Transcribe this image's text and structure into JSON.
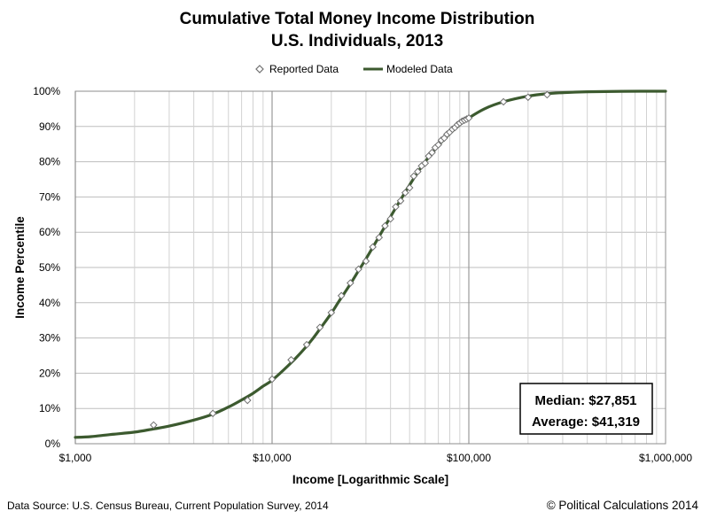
{
  "chart_data": {
    "type": "scatter",
    "title": "Cumulative Total Money Income Distribution",
    "subtitle": "U.S. Individuals, 2013",
    "xlabel": "Income [Logarithmic Scale]",
    "ylabel": "Income Percentile",
    "x_scale": "log",
    "xlim": [
      1000,
      1000000
    ],
    "ylim": [
      0,
      100
    ],
    "x_tick_values": [
      1000,
      10000,
      100000,
      1000000
    ],
    "x_tick_labels": [
      "$1,000",
      "$10,000",
      "$100,000",
      "$1,000,000"
    ],
    "y_tick_values": [
      0,
      10,
      20,
      30,
      40,
      50,
      60,
      70,
      80,
      90,
      100
    ],
    "y_tick_labels": [
      "0%",
      "10%",
      "20%",
      "30%",
      "40%",
      "50%",
      "60%",
      "70%",
      "80%",
      "90%",
      "100%"
    ],
    "grid": true,
    "legend_position": "top",
    "series": [
      {
        "name": "Reported Data",
        "style": "diamond-markers",
        "color": "#707070",
        "points": [
          [
            2500,
            5.3
          ],
          [
            5000,
            8.6
          ],
          [
            7500,
            12.3
          ],
          [
            10000,
            18.3
          ],
          [
            12500,
            23.8
          ],
          [
            15000,
            28.1
          ],
          [
            17500,
            33.0
          ],
          [
            20000,
            37.2
          ],
          [
            22500,
            42.0
          ],
          [
            25000,
            45.6
          ],
          [
            27500,
            49.5
          ],
          [
            30000,
            51.8
          ],
          [
            32500,
            55.8
          ],
          [
            35000,
            58.5
          ],
          [
            37500,
            61.8
          ],
          [
            40000,
            63.8
          ],
          [
            42500,
            67.2
          ],
          [
            45000,
            68.9
          ],
          [
            47500,
            71.2
          ],
          [
            50000,
            72.6
          ],
          [
            52500,
            75.9
          ],
          [
            55000,
            77.2
          ],
          [
            57500,
            78.8
          ],
          [
            60000,
            79.6
          ],
          [
            62500,
            81.6
          ],
          [
            65000,
            82.6
          ],
          [
            67500,
            84.0
          ],
          [
            70000,
            84.8
          ],
          [
            72500,
            86.1
          ],
          [
            75000,
            86.7
          ],
          [
            77500,
            87.8
          ],
          [
            80000,
            88.4
          ],
          [
            82500,
            89.2
          ],
          [
            85000,
            89.7
          ],
          [
            87500,
            90.5
          ],
          [
            90000,
            91.0
          ],
          [
            92500,
            91.5
          ],
          [
            95000,
            91.8
          ],
          [
            97500,
            92.1
          ],
          [
            100000,
            92.4
          ],
          [
            150000,
            97.0
          ],
          [
            200000,
            98.3
          ],
          [
            250000,
            99.0
          ]
        ]
      },
      {
        "name": "Modeled Data",
        "style": "line",
        "color": "#3c5a2f",
        "points": [
          [
            1000,
            1.8
          ],
          [
            1200,
            2.0
          ],
          [
            1500,
            2.6
          ],
          [
            2000,
            3.3
          ],
          [
            2500,
            4.2
          ],
          [
            3000,
            5.0
          ],
          [
            4000,
            6.7
          ],
          [
            5000,
            8.4
          ],
          [
            6000,
            10.4
          ],
          [
            7000,
            12.4
          ],
          [
            8000,
            14.3
          ],
          [
            9000,
            16.3
          ],
          [
            10000,
            18.0
          ],
          [
            12000,
            22.0
          ],
          [
            14000,
            25.8
          ],
          [
            16000,
            29.6
          ],
          [
            18000,
            33.5
          ],
          [
            20000,
            37.0
          ],
          [
            22000,
            40.6
          ],
          [
            25000,
            45.3
          ],
          [
            28000,
            49.8
          ],
          [
            30000,
            52.4
          ],
          [
            35000,
            58.8
          ],
          [
            40000,
            64.4
          ],
          [
            45000,
            69.2
          ],
          [
            50000,
            73.4
          ],
          [
            55000,
            77.0
          ],
          [
            60000,
            80.0
          ],
          [
            70000,
            84.6
          ],
          [
            80000,
            88.0
          ],
          [
            90000,
            90.5
          ],
          [
            100000,
            92.4
          ],
          [
            120000,
            95.0
          ],
          [
            150000,
            97.0
          ],
          [
            200000,
            98.6
          ],
          [
            250000,
            99.3
          ],
          [
            300000,
            99.6
          ],
          [
            400000,
            99.85
          ],
          [
            600000,
            99.97
          ],
          [
            1000000,
            100.0
          ]
        ]
      }
    ],
    "annotation": {
      "median_label": "Median: $27,851",
      "average_label": "Average: $41,319"
    }
  },
  "footer": {
    "source": "Data Source:  U.S. Census Bureau, Current Population Survey,  2014",
    "credit": "© Political Calculations 2014"
  }
}
